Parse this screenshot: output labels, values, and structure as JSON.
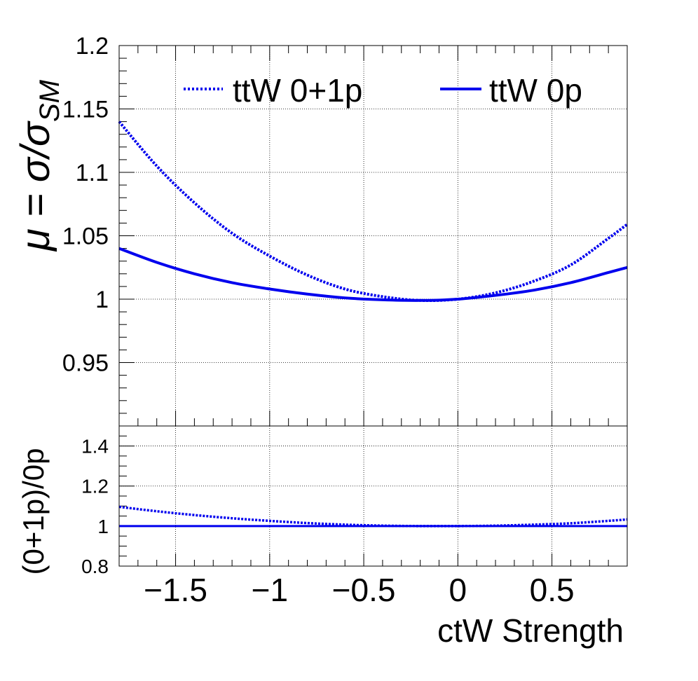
{
  "chart_data": [
    {
      "type": "line",
      "panel": "main",
      "ylabel": {
        "base": "μ = σ/σ",
        "sub": "SM"
      },
      "xlim": [
        -1.8,
        0.9
      ],
      "ylim": [
        0.9,
        1.2
      ],
      "y_ticks": [
        0.95,
        1,
        1.05,
        1.1,
        1.15,
        1.2
      ],
      "y_tick_labels": [
        "0.95",
        "1",
        "1.05",
        "1.1",
        "1.15",
        "1.2"
      ],
      "grid": true,
      "legend_position": "top",
      "series": [
        {
          "name": "ttW 0+1p",
          "style": "dotted",
          "color": "#0000ee",
          "x": [
            -1.8,
            -1.6,
            -1.4,
            -1.2,
            -1.0,
            -0.8,
            -0.6,
            -0.4,
            -0.2,
            0.0,
            0.2,
            0.4,
            0.6,
            0.8,
            0.9
          ],
          "y": [
            1.14,
            1.105,
            1.076,
            1.052,
            1.034,
            1.019,
            1.008,
            1.002,
            0.999,
            1.0,
            1.005,
            1.014,
            1.027,
            1.048,
            1.059
          ]
        },
        {
          "name": "ttW 0p",
          "style": "solid",
          "color": "#0000ee",
          "x": [
            -1.8,
            -1.6,
            -1.4,
            -1.2,
            -1.0,
            -0.8,
            -0.6,
            -0.4,
            -0.2,
            0.0,
            0.2,
            0.4,
            0.6,
            0.8,
            0.9
          ],
          "y": [
            1.04,
            1.029,
            1.02,
            1.013,
            1.008,
            1.004,
            1.001,
            0.9995,
            0.999,
            1.0,
            1.003,
            1.007,
            1.013,
            1.021,
            1.025
          ]
        }
      ]
    },
    {
      "type": "line",
      "panel": "ratio",
      "xlabel": "ctW Strength",
      "ylabel": "(0+1p)/0p",
      "xlim": [
        -1.8,
        0.9
      ],
      "ylim": [
        0.8,
        1.5
      ],
      "x_ticks": [
        -1.5,
        -1,
        -0.5,
        0,
        0.5
      ],
      "x_tick_labels": [
        "−1.5",
        "−1",
        "−0.5",
        "0",
        "0.5"
      ],
      "y_ticks": [
        0.8,
        1,
        1.2,
        1.4
      ],
      "y_tick_labels": [
        "0.8",
        "1",
        "1.2",
        "1.4"
      ],
      "grid": true,
      "series": [
        {
          "style": "dotted",
          "color": "#0000ee",
          "x": [
            -1.8,
            -1.6,
            -1.4,
            -1.2,
            -1.0,
            -0.8,
            -0.6,
            -0.4,
            -0.2,
            0.0,
            0.2,
            0.4,
            0.6,
            0.8,
            0.9
          ],
          "y": [
            1.096,
            1.074,
            1.055,
            1.039,
            1.026,
            1.015,
            1.007,
            1.002,
            1.0,
            1.0,
            1.002,
            1.007,
            1.014,
            1.026,
            1.033
          ]
        },
        {
          "style": "solid",
          "color": "#0000ee",
          "x": [
            -1.8,
            0.9
          ],
          "y": [
            1.0,
            1.0
          ]
        }
      ]
    }
  ]
}
